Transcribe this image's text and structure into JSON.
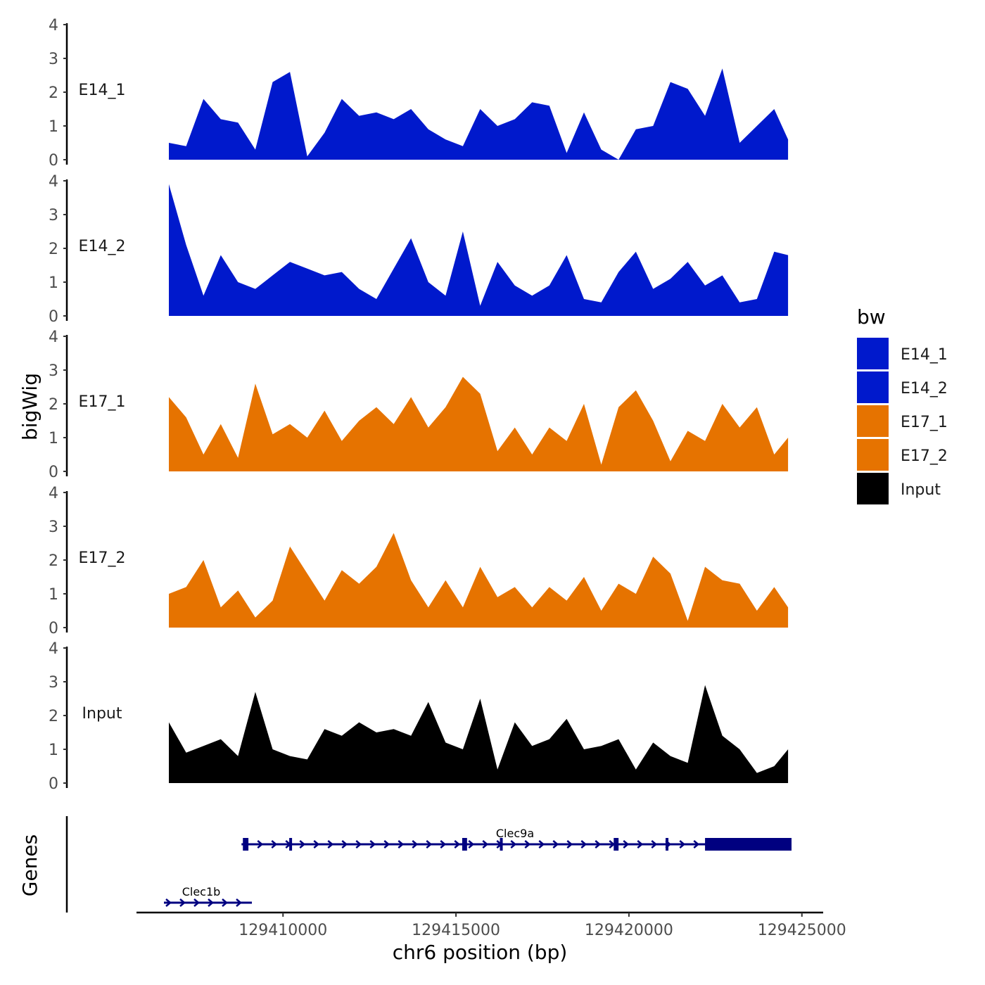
{
  "chart_data": {
    "type": "area",
    "chromosome": "chr6",
    "xlabel": "chr6 position (bp)",
    "ylabel": "bigWig",
    "genes_label": "Genes",
    "xlim": [
      129406700,
      129424700
    ],
    "xticks": [
      129410000,
      129415000,
      129420000,
      129425000
    ],
    "xtick_labels": [
      "129410000",
      "129415000",
      "129420000",
      "129425000"
    ],
    "ylim": [
      0,
      4
    ],
    "yticks": [
      0,
      1,
      2,
      3,
      4
    ],
    "ytick_labels": [
      "0",
      "1",
      "2",
      "3",
      "4"
    ],
    "colors": {
      "E14": "#0019cc",
      "E17": "#e67300",
      "Input": "#000000",
      "gene": "#000080"
    },
    "legend": {
      "title": "bw",
      "entries": [
        {
          "label": "E14_1",
          "color": "#0019cc"
        },
        {
          "label": "E14_2",
          "color": "#0019cc"
        },
        {
          "label": "E17_1",
          "color": "#e67300"
        },
        {
          "label": "E17_2",
          "color": "#e67300"
        },
        {
          "label": "Input",
          "color": "#000000"
        }
      ]
    },
    "series": [
      {
        "name": "E14_1",
        "color": "#0019cc",
        "x": [
          129406700,
          129407200,
          129407700,
          129408200,
          129408700,
          129409200,
          129409700,
          129410200,
          129410700,
          129411200,
          129411700,
          129412200,
          129412700,
          129413200,
          129413700,
          129414200,
          129414700,
          129415200,
          129415700,
          129416200,
          129416700,
          129417200,
          129417700,
          129418200,
          129418700,
          129419200,
          129419700,
          129420200,
          129420700,
          129421200,
          129421700,
          129422200,
          129422700,
          129423200,
          129423700,
          129424200,
          129424600
        ],
        "values": [
          0.5,
          0.4,
          1.8,
          1.2,
          1.1,
          0.3,
          2.3,
          2.6,
          0.1,
          0.8,
          1.8,
          1.3,
          1.4,
          1.2,
          1.5,
          0.9,
          0.6,
          0.4,
          1.5,
          1.0,
          1.2,
          1.7,
          1.6,
          0.2,
          1.4,
          0.3,
          0.0,
          0.9,
          1.0,
          2.3,
          2.1,
          1.3,
          2.7,
          0.5,
          1.0,
          1.5,
          0.6
        ]
      },
      {
        "name": "E14_2",
        "color": "#0019cc",
        "x": [
          129406700,
          129407200,
          129407700,
          129408200,
          129408700,
          129409200,
          129409700,
          129410200,
          129410700,
          129411200,
          129411700,
          129412200,
          129412700,
          129413200,
          129413700,
          129414200,
          129414700,
          129415200,
          129415700,
          129416200,
          129416700,
          129417200,
          129417700,
          129418200,
          129418700,
          129419200,
          129419700,
          129420200,
          129420700,
          129421200,
          129421700,
          129422200,
          129422700,
          129423200,
          129423700,
          129424200,
          129424600
        ],
        "values": [
          3.9,
          2.1,
          0.6,
          1.8,
          1.0,
          0.8,
          1.2,
          1.6,
          1.4,
          1.2,
          1.3,
          0.8,
          0.5,
          1.4,
          2.3,
          1.0,
          0.6,
          2.5,
          0.3,
          1.6,
          0.9,
          0.6,
          0.9,
          1.8,
          0.5,
          0.4,
          1.3,
          1.9,
          0.8,
          1.1,
          1.6,
          0.9,
          1.2,
          0.4,
          0.5,
          1.9,
          1.8
        ]
      },
      {
        "name": "E17_1",
        "color": "#e67300",
        "x": [
          129406700,
          129407200,
          129407700,
          129408200,
          129408700,
          129409200,
          129409700,
          129410200,
          129410700,
          129411200,
          129411700,
          129412200,
          129412700,
          129413200,
          129413700,
          129414200,
          129414700,
          129415200,
          129415700,
          129416200,
          129416700,
          129417200,
          129417700,
          129418200,
          129418700,
          129419200,
          129419700,
          129420200,
          129420700,
          129421200,
          129421700,
          129422200,
          129422700,
          129423200,
          129423700,
          129424200,
          129424600
        ],
        "values": [
          2.2,
          1.6,
          0.5,
          1.4,
          0.4,
          2.6,
          1.1,
          1.4,
          1.0,
          1.8,
          0.9,
          1.5,
          1.9,
          1.4,
          2.2,
          1.3,
          1.9,
          2.8,
          2.3,
          0.6,
          1.3,
          0.5,
          1.3,
          0.9,
          2.0,
          0.2,
          1.9,
          2.4,
          1.5,
          0.3,
          1.2,
          0.9,
          2.0,
          1.3,
          1.9,
          0.5,
          1.0
        ]
      },
      {
        "name": "E17_2",
        "color": "#e67300",
        "x": [
          129406700,
          129407200,
          129407700,
          129408200,
          129408700,
          129409200,
          129409700,
          129410200,
          129410700,
          129411200,
          129411700,
          129412200,
          129412700,
          129413200,
          129413700,
          129414200,
          129414700,
          129415200,
          129415700,
          129416200,
          129416700,
          129417200,
          129417700,
          129418200,
          129418700,
          129419200,
          129419700,
          129420200,
          129420700,
          129421200,
          129421700,
          129422200,
          129422700,
          129423200,
          129423700,
          129424200,
          129424600
        ],
        "values": [
          1.0,
          1.2,
          2.0,
          0.6,
          1.1,
          0.3,
          0.8,
          2.4,
          1.6,
          0.8,
          1.7,
          1.3,
          1.8,
          2.8,
          1.4,
          0.6,
          1.4,
          0.6,
          1.8,
          0.9,
          1.2,
          0.6,
          1.2,
          0.8,
          1.5,
          0.5,
          1.3,
          1.0,
          2.1,
          1.6,
          0.2,
          1.8,
          1.4,
          1.3,
          0.5,
          1.2,
          0.6
        ]
      },
      {
        "name": "Input",
        "color": "#000000",
        "x": [
          129406700,
          129407200,
          129407700,
          129408200,
          129408700,
          129409200,
          129409700,
          129410200,
          129410700,
          129411200,
          129411700,
          129412200,
          129412700,
          129413200,
          129413700,
          129414200,
          129414700,
          129415200,
          129415700,
          129416200,
          129416700,
          129417200,
          129417700,
          129418200,
          129418700,
          129419200,
          129419700,
          129420200,
          129420700,
          129421200,
          129421700,
          129422200,
          129422700,
          129423200,
          129423700,
          129424200,
          129424600
        ],
        "values": [
          1.8,
          0.9,
          1.1,
          1.3,
          0.8,
          2.7,
          1.0,
          0.8,
          0.7,
          1.6,
          1.4,
          1.8,
          1.5,
          1.6,
          1.4,
          2.4,
          1.2,
          1.0,
          2.5,
          0.4,
          1.8,
          1.1,
          1.3,
          1.9,
          1.0,
          1.1,
          1.3,
          0.4,
          1.2,
          0.8,
          0.6,
          2.9,
          1.4,
          1.0,
          0.3,
          0.5,
          1.0
        ]
      }
    ],
    "genes": [
      {
        "name": "Clec9a",
        "strand": "+",
        "start": 129408800,
        "end": 129424700,
        "exons": [
          [
            129408840,
            129409000
          ],
          [
            129410180,
            129410260
          ],
          [
            129415180,
            129415320
          ],
          [
            129416270,
            129416330
          ],
          [
            129419560,
            129419700
          ],
          [
            129421060,
            129421140
          ],
          [
            129422200,
            129424700
          ]
        ]
      },
      {
        "name": "Clec1b",
        "strand": "+",
        "start": 129406500,
        "end": 129409000,
        "exons": []
      }
    ]
  }
}
